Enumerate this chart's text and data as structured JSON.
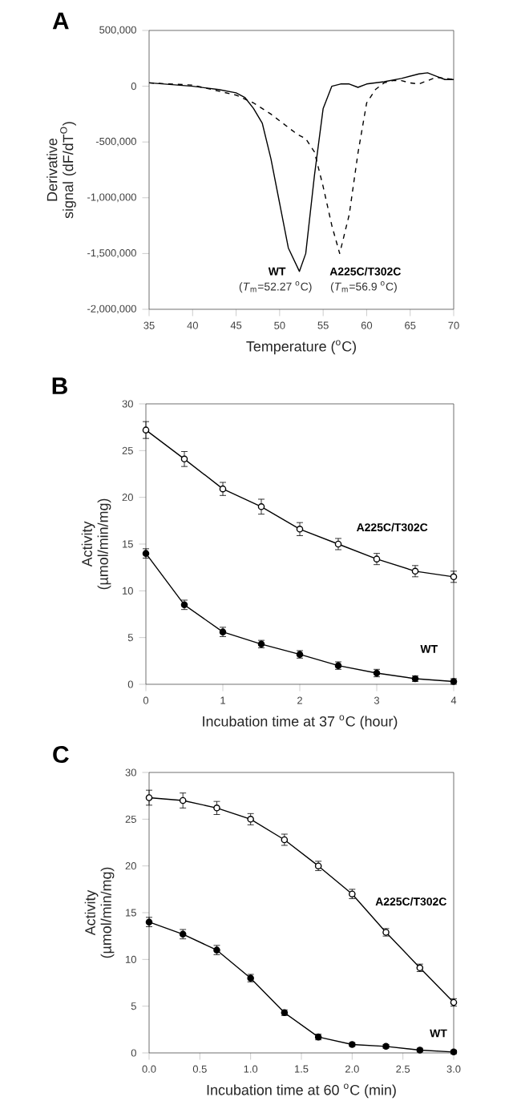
{
  "chart_data": [
    {
      "type": "line",
      "title": "A",
      "xlabel": "Temperature ($^{o}$C)",
      "ylabel": "Derivative signal (dF/dT$^{O}$)",
      "xlim": [
        35,
        70
      ],
      "xticks": [
        35,
        40,
        45,
        50,
        55,
        60,
        65,
        70
      ],
      "ylim": [
        -2000000,
        500000
      ],
      "yticks": [
        {
          "value": -2000000,
          "label": "-2,000,000"
        },
        {
          "value": -1500000,
          "label": "-1,500,000"
        },
        {
          "value": -1000000,
          "label": "-1,000,000"
        },
        {
          "value": -500000,
          "label": "-500,000"
        },
        0,
        {
          "value": 500000,
          "label": "500,000"
        }
      ],
      "annotations": [
        "(*T*$_{m}$=52.27 $^{o}$C)",
        "(*T*$_{m}$=56.9 $^{o}$C)"
      ],
      "series": [
        {
          "name": "WT",
          "color": "#000000",
          "line_style": "solid",
          "x": [
            35,
            40,
            43,
            45,
            46,
            47,
            48,
            49,
            50,
            51,
            52.27,
            53,
            54,
            55,
            56,
            57,
            58,
            59,
            60,
            62,
            64,
            66,
            67,
            68,
            69,
            70
          ],
          "values": [
            30000,
            0,
            -30000,
            -60000,
            -100000,
            -200000,
            -330000,
            -650000,
            -1050000,
            -1450000,
            -1660000,
            -1500000,
            -800000,
            -200000,
            0,
            20000,
            20000,
            -10000,
            20000,
            40000,
            70000,
            110000,
            120000,
            90000,
            60000,
            60000
          ]
        },
        {
          "name": "A225C/T302C",
          "color": "#000000",
          "line_style": "dashed",
          "x": [
            35,
            40,
            45,
            47,
            49,
            50,
            52,
            53,
            54,
            55,
            56,
            56.9,
            58,
            59,
            60,
            61,
            62,
            63,
            64,
            65,
            66,
            67,
            68,
            70
          ],
          "values": [
            30000,
            10000,
            -80000,
            -150000,
            -250000,
            -310000,
            -430000,
            -470000,
            -590000,
            -900000,
            -1250000,
            -1500000,
            -1150000,
            -600000,
            -150000,
            -30000,
            30000,
            50000,
            50000,
            30000,
            20000,
            50000,
            80000,
            60000
          ]
        }
      ]
    },
    {
      "type": "line",
      "title": "B",
      "xlabel": "Incubation time at 37 $^{o}$C (hour)",
      "ylabel": "Activity (µmol/min/mg)",
      "x": [
        0,
        0.5,
        1,
        1.5,
        2,
        2.5,
        3,
        3.5,
        4
      ],
      "xlim": [
        0,
        4
      ],
      "xticks": [
        0,
        1,
        2,
        3,
        4
      ],
      "ylim": [
        0,
        30
      ],
      "yticks": [
        0,
        5,
        10,
        15,
        20,
        25,
        30
      ],
      "marker": "circle",
      "series": [
        {
          "name": "A225C/T302C",
          "color": "#000000",
          "values": [
            27.2,
            24.1,
            20.9,
            19.0,
            16.6,
            15.0,
            13.4,
            12.1,
            11.5
          ],
          "errors": [
            0.9,
            0.8,
            0.7,
            0.8,
            0.7,
            0.6,
            0.6,
            0.6,
            0.6
          ]
        },
        {
          "name": "WT",
          "color": "#000000",
          "values": [
            14.0,
            8.5,
            5.6,
            4.3,
            3.2,
            2.0,
            1.2,
            0.6,
            0.3
          ],
          "errors": [
            0.5,
            0.5,
            0.5,
            0.4,
            0.4,
            0.4,
            0.4,
            0.3,
            0.3
          ]
        }
      ]
    },
    {
      "type": "line",
      "title": "C",
      "xlabel": "Incubation time at 60 $^{o}$C (min)",
      "ylabel": "Activity (µmol/min/mg)",
      "x": [
        0,
        0.333,
        0.667,
        1,
        1.333,
        1.667,
        2,
        2.333,
        2.667,
        3
      ],
      "xlim": [
        0,
        3
      ],
      "xticks": [
        {
          "value": 0,
          "label": "0.0"
        },
        {
          "value": 0.5,
          "label": "0.5"
        },
        {
          "value": 1,
          "label": "1.0"
        },
        {
          "value": 1.5,
          "label": "1.5"
        },
        {
          "value": 2,
          "label": "2.0"
        },
        {
          "value": 2.5,
          "label": "2.5"
        },
        {
          "value": 3,
          "label": "3.0"
        }
      ],
      "ylim": [
        0,
        30
      ],
      "yticks": [
        0,
        5,
        10,
        15,
        20,
        25,
        30
      ],
      "marker": "circle",
      "series": [
        {
          "name": "A225C/T302C",
          "color": "#000000",
          "values": [
            27.3,
            27.0,
            26.2,
            25.0,
            22.8,
            20.0,
            17.0,
            12.9,
            9.1,
            5.4
          ],
          "errors": [
            0.8,
            0.8,
            0.7,
            0.6,
            0.6,
            0.5,
            0.5,
            0.4,
            0.4,
            0.4
          ]
        },
        {
          "name": "WT",
          "color": "#000000",
          "values": [
            14.0,
            12.7,
            11.0,
            8.0,
            4.3,
            1.7,
            0.9,
            0.7,
            0.3,
            0.1
          ],
          "errors": [
            0.5,
            0.5,
            0.5,
            0.4,
            0.3,
            0.3,
            0.2,
            0.2,
            0.2,
            0.2
          ]
        }
      ]
    }
  ]
}
